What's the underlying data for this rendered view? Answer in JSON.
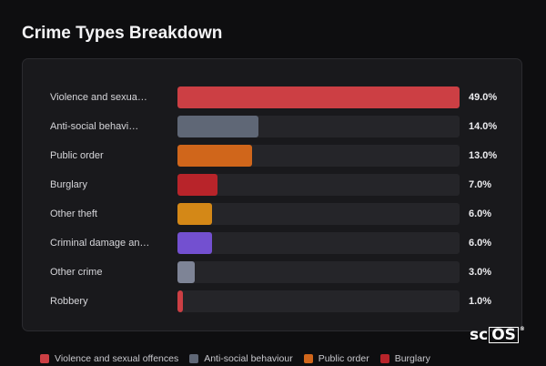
{
  "title": "Crime Types Breakdown",
  "chart_data": {
    "type": "bar",
    "orientation": "horizontal",
    "categories": [
      "Violence and sexua…",
      "Anti-social behavi…",
      "Public order",
      "Burglary",
      "Other theft",
      "Criminal damage an…",
      "Other crime",
      "Robbery"
    ],
    "values": [
      49.0,
      14.0,
      13.0,
      7.0,
      6.0,
      6.0,
      3.0,
      1.0
    ],
    "value_labels": [
      "49.0%",
      "14.0%",
      "13.0%",
      "7.0%",
      "6.0%",
      "6.0%",
      "3.0%",
      "1.0%"
    ],
    "colors": [
      "#cc3f44",
      "#5f6776",
      "#d0661b",
      "#b8242a",
      "#d48817",
      "#7350d0",
      "#7e8496",
      "#cc3f44"
    ],
    "xlim": [
      0,
      49
    ],
    "grid": false
  },
  "legend": [
    {
      "label": "Violence and sexual offences",
      "color": "#cc3f44"
    },
    {
      "label": "Anti-social behaviour",
      "color": "#5f6776"
    },
    {
      "label": "Public order",
      "color": "#d0661b"
    },
    {
      "label": "Burglary",
      "color": "#b8242a"
    }
  ],
  "logo": {
    "text_plain": "sc",
    "text_boxed": "OS",
    "mark": "®"
  }
}
